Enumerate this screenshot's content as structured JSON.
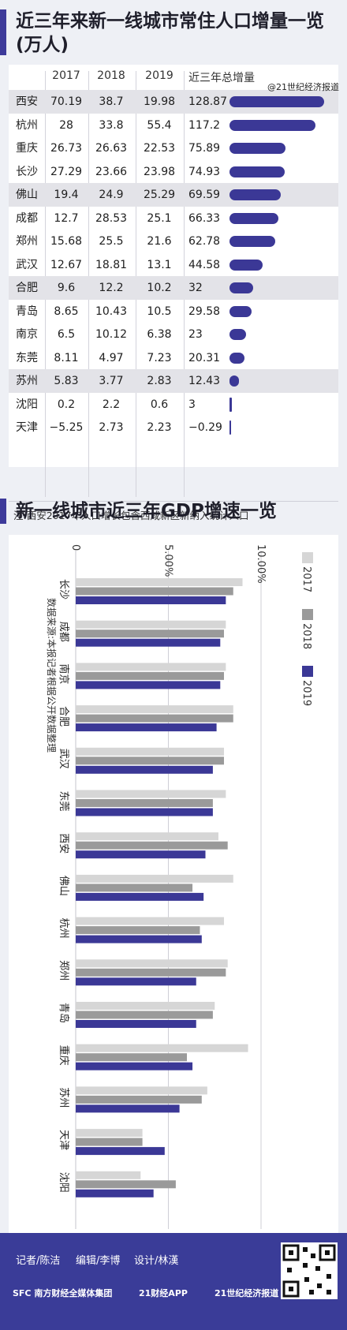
{
  "table_section": {
    "title_line1": "近三年来新一线城市常住人口增量一览",
    "title_line2": "(万人)",
    "headers": [
      "2017",
      "2018",
      "2019",
      "近三年总增量"
    ],
    "note": "注:西安2017年人口增长包含西咸新区新纳入统计人口"
  },
  "gdp_section": {
    "title": "新一线城市近三年GDP增速一览"
  },
  "footer": {
    "reporter": "记者/陈洁",
    "editor": "编辑/李博",
    "designer": "设计/林漢",
    "logo1": "SFC 南方财经全媒体集团",
    "logo2": "21财经APP",
    "logo3": "21世纪经济报道",
    "weibo": "@21世纪经济报道"
  },
  "chart_data": [
    {
      "type": "table",
      "title": "近三年来新一线城市常住人口增量一览(万人)",
      "columns": [
        "2017",
        "2018",
        "2019",
        "近三年总增量"
      ],
      "rows": [
        {
          "city": "西安",
          "v2017": "70.19",
          "v2018": "38.7",
          "v2019": "19.98",
          "total": "128.87",
          "total_value": 128.87,
          "shaded": true
        },
        {
          "city": "杭州",
          "v2017": "28",
          "v2018": "33.8",
          "v2019": "55.4",
          "total": "117.2",
          "total_value": 117.2,
          "shaded": false
        },
        {
          "city": "重庆",
          "v2017": "26.73",
          "v2018": "26.63",
          "v2019": "22.53",
          "total": "75.89",
          "total_value": 75.89,
          "shaded": false
        },
        {
          "city": "长沙",
          "v2017": "27.29",
          "v2018": "23.66",
          "v2019": "23.98",
          "total": "74.93",
          "total_value": 74.93,
          "shaded": false
        },
        {
          "city": "佛山",
          "v2017": "19.4",
          "v2018": "24.9",
          "v2019": "25.29",
          "total": "69.59",
          "total_value": 69.59,
          "shaded": true
        },
        {
          "city": "成都",
          "v2017": "12.7",
          "v2018": "28.53",
          "v2019": "25.1",
          "total": "66.33",
          "total_value": 66.33,
          "shaded": false
        },
        {
          "city": "郑州",
          "v2017": "15.68",
          "v2018": "25.5",
          "v2019": "21.6",
          "total": "62.78",
          "total_value": 62.78,
          "shaded": false
        },
        {
          "city": "武汉",
          "v2017": "12.67",
          "v2018": "18.81",
          "v2019": "13.1",
          "total": "44.58",
          "total_value": 44.58,
          "shaded": false
        },
        {
          "city": "合肥",
          "v2017": "9.6",
          "v2018": "12.2",
          "v2019": "10.2",
          "total": "32",
          "total_value": 32,
          "shaded": true
        },
        {
          "city": "青岛",
          "v2017": "8.65",
          "v2018": "10.43",
          "v2019": "10.5",
          "total": "29.58",
          "total_value": 29.58,
          "shaded": false
        },
        {
          "city": "南京",
          "v2017": "6.5",
          "v2018": "10.12",
          "v2019": "6.38",
          "total": "23",
          "total_value": 23,
          "shaded": false
        },
        {
          "city": "东莞",
          "v2017": "8.11",
          "v2018": "4.97",
          "v2019": "7.23",
          "total": "20.31",
          "total_value": 20.31,
          "shaded": false
        },
        {
          "city": "苏州",
          "v2017": "5.83",
          "v2018": "3.77",
          "v2019": "2.83",
          "total": "12.43",
          "total_value": 12.43,
          "shaded": true
        },
        {
          "city": "沈阳",
          "v2017": "0.2",
          "v2018": "2.2",
          "v2019": "0.6",
          "total": "3",
          "total_value": 3,
          "shaded": false
        },
        {
          "city": "天津",
          "v2017": "−5.25",
          "v2018": "2.73",
          "v2019": "2.23",
          "total": "−0.29",
          "total_value": -0.29,
          "shaded": false
        }
      ]
    },
    {
      "type": "bar",
      "title": "新一线城市近三年GDP增速一览",
      "orientation": "horizontal",
      "ticks": [
        "0",
        "5.00%",
        "10.00%"
      ],
      "xlim": [
        0,
        10
      ],
      "annotation": "数据来源:本报记者根据公开数据整理",
      "categories": [
        "长沙",
        "成都",
        "南京",
        "合肥",
        "武汉",
        "东莞",
        "西安",
        "佛山",
        "杭州",
        "郑州",
        "青岛",
        "重庆",
        "苏州",
        "天津",
        "沈阳"
      ],
      "series": [
        {
          "name": "2017",
          "color": "#d6d6d6",
          "values": [
            9.0,
            8.1,
            8.1,
            8.5,
            8.0,
            8.1,
            7.7,
            8.5,
            8.0,
            8.2,
            7.5,
            9.3,
            7.1,
            3.6,
            3.5
          ]
        },
        {
          "name": "2018",
          "color": "#9a9a9a",
          "values": [
            8.5,
            8.0,
            8.0,
            8.5,
            8.0,
            7.4,
            8.2,
            6.3,
            6.7,
            8.1,
            7.4,
            6.0,
            6.8,
            3.6,
            5.4
          ]
        },
        {
          "name": "2019",
          "color": "#3b3896",
          "values": [
            8.1,
            7.8,
            7.8,
            7.6,
            7.4,
            7.4,
            7.0,
            6.9,
            6.8,
            6.5,
            6.5,
            6.3,
            5.6,
            4.8,
            4.2
          ]
        }
      ]
    }
  ]
}
